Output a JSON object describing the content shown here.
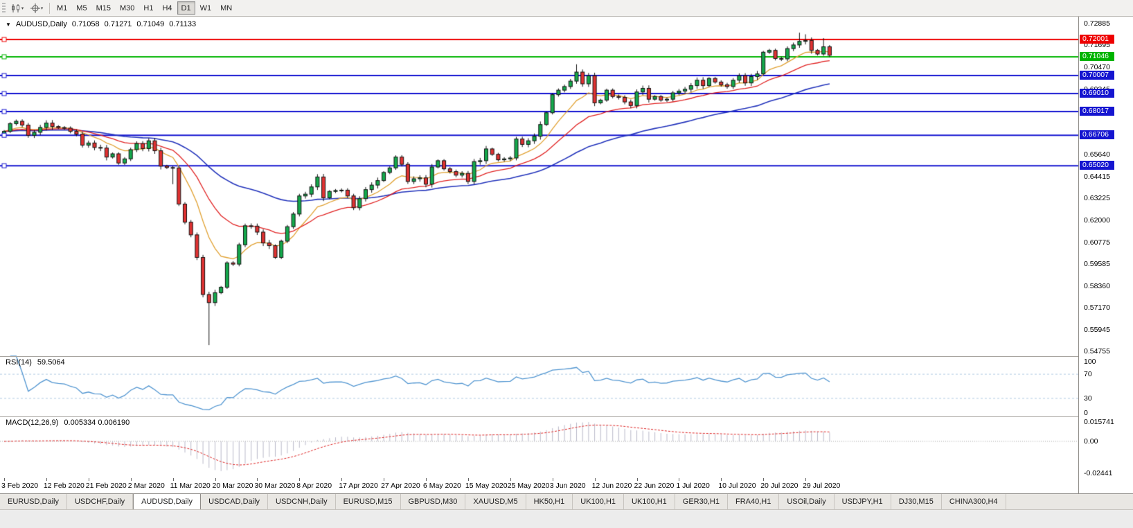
{
  "toolbar": {
    "timeframes": [
      {
        "label": "M1",
        "active": false
      },
      {
        "label": "M5",
        "active": false
      },
      {
        "label": "M15",
        "active": false
      },
      {
        "label": "M30",
        "active": false
      },
      {
        "label": "H1",
        "active": false
      },
      {
        "label": "H4",
        "active": false
      },
      {
        "label": "D1",
        "active": true
      },
      {
        "label": "W1",
        "active": false
      },
      {
        "label": "MN",
        "active": false
      }
    ]
  },
  "chart_header": {
    "symbol": "AUDUSD,Daily",
    "open": "0.71058",
    "high": "0.71271",
    "low": "0.71049",
    "close": "0.71133"
  },
  "price_axis": {
    "labels": [
      "0.72885",
      "0.71695",
      "0.70470",
      "0.69245",
      "0.68020",
      "0.66830",
      "0.65640",
      "0.64415",
      "0.63225",
      "0.62000",
      "0.60775",
      "0.59585",
      "0.58360",
      "0.57170",
      "0.55945",
      "0.54755"
    ]
  },
  "rsi_panel": {
    "name": "RSI(14)",
    "value": "59.5064",
    "axis_labels": [
      "100",
      "70",
      "30",
      "0"
    ]
  },
  "macd_panel": {
    "name": "MACD(12,26,9)",
    "value": "0.005334 0.006190",
    "axis_labels": [
      "0.015741",
      "0.00",
      "-0.02441"
    ]
  },
  "tabs": [
    {
      "label": "EURUSD,Daily",
      "active": false
    },
    {
      "label": "USDCHF,Daily",
      "active": false
    },
    {
      "label": "AUDUSD,Daily",
      "active": true
    },
    {
      "label": "USDCAD,Daily",
      "active": false
    },
    {
      "label": "USDCNH,Daily",
      "active": false
    },
    {
      "label": "EURUSD,M15",
      "active": false
    },
    {
      "label": "GBPUSD,M30",
      "active": false
    },
    {
      "label": "XAUUSD,M5",
      "active": false
    },
    {
      "label": "HK50,H1",
      "active": false
    },
    {
      "label": "UK100,H1",
      "active": false
    },
    {
      "label": "UK100,H1",
      "active": false
    },
    {
      "label": "GER30,H1",
      "active": false
    },
    {
      "label": "FRA40,H1",
      "active": false
    },
    {
      "label": "USOil,Daily",
      "active": false
    },
    {
      "label": "USDJPY,H1",
      "active": false
    },
    {
      "label": "DJ30,M15",
      "active": false
    },
    {
      "label": "CHINA300,H4",
      "active": false
    }
  ],
  "chart_data": {
    "type": "candlestick",
    "symbol": "AUDUSD",
    "period": "Daily",
    "title": "AUDUSD,Daily 0.71058 0.71271 0.71049 0.71133",
    "price_range": [
      0.5449,
      0.7319
    ],
    "label_every": 7,
    "x_labels": [
      "3 Feb 2020",
      "12 Feb 2020",
      "21 Feb 2020",
      "2 Mar 2020",
      "11 Mar 2020",
      "20 Mar 2020",
      "30 Mar 2020",
      "8 Apr 2020",
      "17 Apr 2020",
      "27 Apr 2020",
      "6 May 2020",
      "15 May 2020",
      "25 May 2020",
      "3 Jun 2020",
      "12 Jun 2020",
      "22 Jun 2020",
      "1 Jul 2020",
      "10 Jul 2020",
      "20 Jul 2020",
      "29 Jul 2020"
    ],
    "first_open": 0.668,
    "closes": [
      0.6692,
      0.6735,
      0.6748,
      0.6727,
      0.667,
      0.6687,
      0.6714,
      0.6738,
      0.6719,
      0.6713,
      0.671,
      0.6692,
      0.6677,
      0.6616,
      0.6628,
      0.6603,
      0.66,
      0.655,
      0.6568,
      0.6517,
      0.654,
      0.6591,
      0.6625,
      0.6597,
      0.664,
      0.6585,
      0.65,
      0.6492,
      0.649,
      0.629,
      0.619,
      0.612,
      0.5995,
      0.579,
      0.5745,
      0.58,
      0.583,
      0.5965,
      0.5958,
      0.6065,
      0.617,
      0.6168,
      0.6135,
      0.6075,
      0.606,
      0.5995,
      0.6085,
      0.6165,
      0.6235,
      0.6335,
      0.6345,
      0.6385,
      0.644,
      0.6325,
      0.636,
      0.6365,
      0.6367,
      0.6335,
      0.627,
      0.632,
      0.637,
      0.6395,
      0.642,
      0.6465,
      0.649,
      0.655,
      0.651,
      0.6415,
      0.643,
      0.6435,
      0.64,
      0.6495,
      0.653,
      0.6485,
      0.647,
      0.645,
      0.646,
      0.6415,
      0.6525,
      0.653,
      0.6595,
      0.6565,
      0.6535,
      0.654,
      0.6545,
      0.665,
      0.662,
      0.664,
      0.6665,
      0.673,
      0.6795,
      0.6895,
      0.692,
      0.694,
      0.697,
      0.702,
      0.6955,
      0.7,
      0.685,
      0.6865,
      0.692,
      0.6885,
      0.688,
      0.6855,
      0.6835,
      0.691,
      0.693,
      0.687,
      0.6885,
      0.6865,
      0.687,
      0.6905,
      0.6915,
      0.6925,
      0.6945,
      0.6975,
      0.6945,
      0.6985,
      0.6965,
      0.695,
      0.694,
      0.6975,
      0.7,
      0.696,
      0.6995,
      0.701,
      0.713,
      0.714,
      0.7095,
      0.7093,
      0.715,
      0.717,
      0.719,
      0.7195,
      0.714,
      0.712,
      0.716,
      0.71133
    ],
    "wick_overrides": {
      "28": {
        "low": 0.64
      },
      "34": {
        "low": 0.551
      },
      "95": {
        "high": 0.7063
      },
      "126": {
        "low": 0.7005
      },
      "132": {
        "high": 0.7238
      },
      "133": {
        "high": 0.7229
      },
      "136": {
        "high": 0.7208
      }
    },
    "levels": [
      {
        "value": 0.72001,
        "label": "0.72001",
        "color": "#ee0000"
      },
      {
        "value": 0.71046,
        "label": "0.71046",
        "color": "#00b400"
      },
      {
        "value": 0.70007,
        "label": "0.70007",
        "color": "#1515d0"
      },
      {
        "value": 0.6901,
        "label": "0.69010",
        "color": "#1515d0"
      },
      {
        "value": 0.68017,
        "label": "0.68017",
        "color": "#1515d0"
      },
      {
        "value": 0.66706,
        "label": "0.66706",
        "color": "#1515d0"
      },
      {
        "value": 0.6502,
        "label": "0.65020",
        "color": "#1515d0"
      }
    ],
    "moving_averages": [
      {
        "period": 48,
        "color": "#2233bb"
      },
      {
        "period": 9,
        "color": "#e0a030"
      },
      {
        "period": 20,
        "color": "#e02020"
      }
    ],
    "candle_up_color": "#14a94c",
    "candle_down_color": "#e03232",
    "rsi": {
      "period": 14,
      "current": 59.5064,
      "levels": [
        70,
        30
      ],
      "range": [
        0,
        100
      ],
      "color": "#4f94d0"
    },
    "macd": {
      "fast": 12,
      "slow": 26,
      "signal": 9,
      "current_main": 0.005334,
      "current_signal": 0.00619,
      "range": [
        -0.02441,
        0.015741
      ],
      "histogram_color": "#b9b9c9",
      "signal_color": "#dd2222"
    }
  }
}
